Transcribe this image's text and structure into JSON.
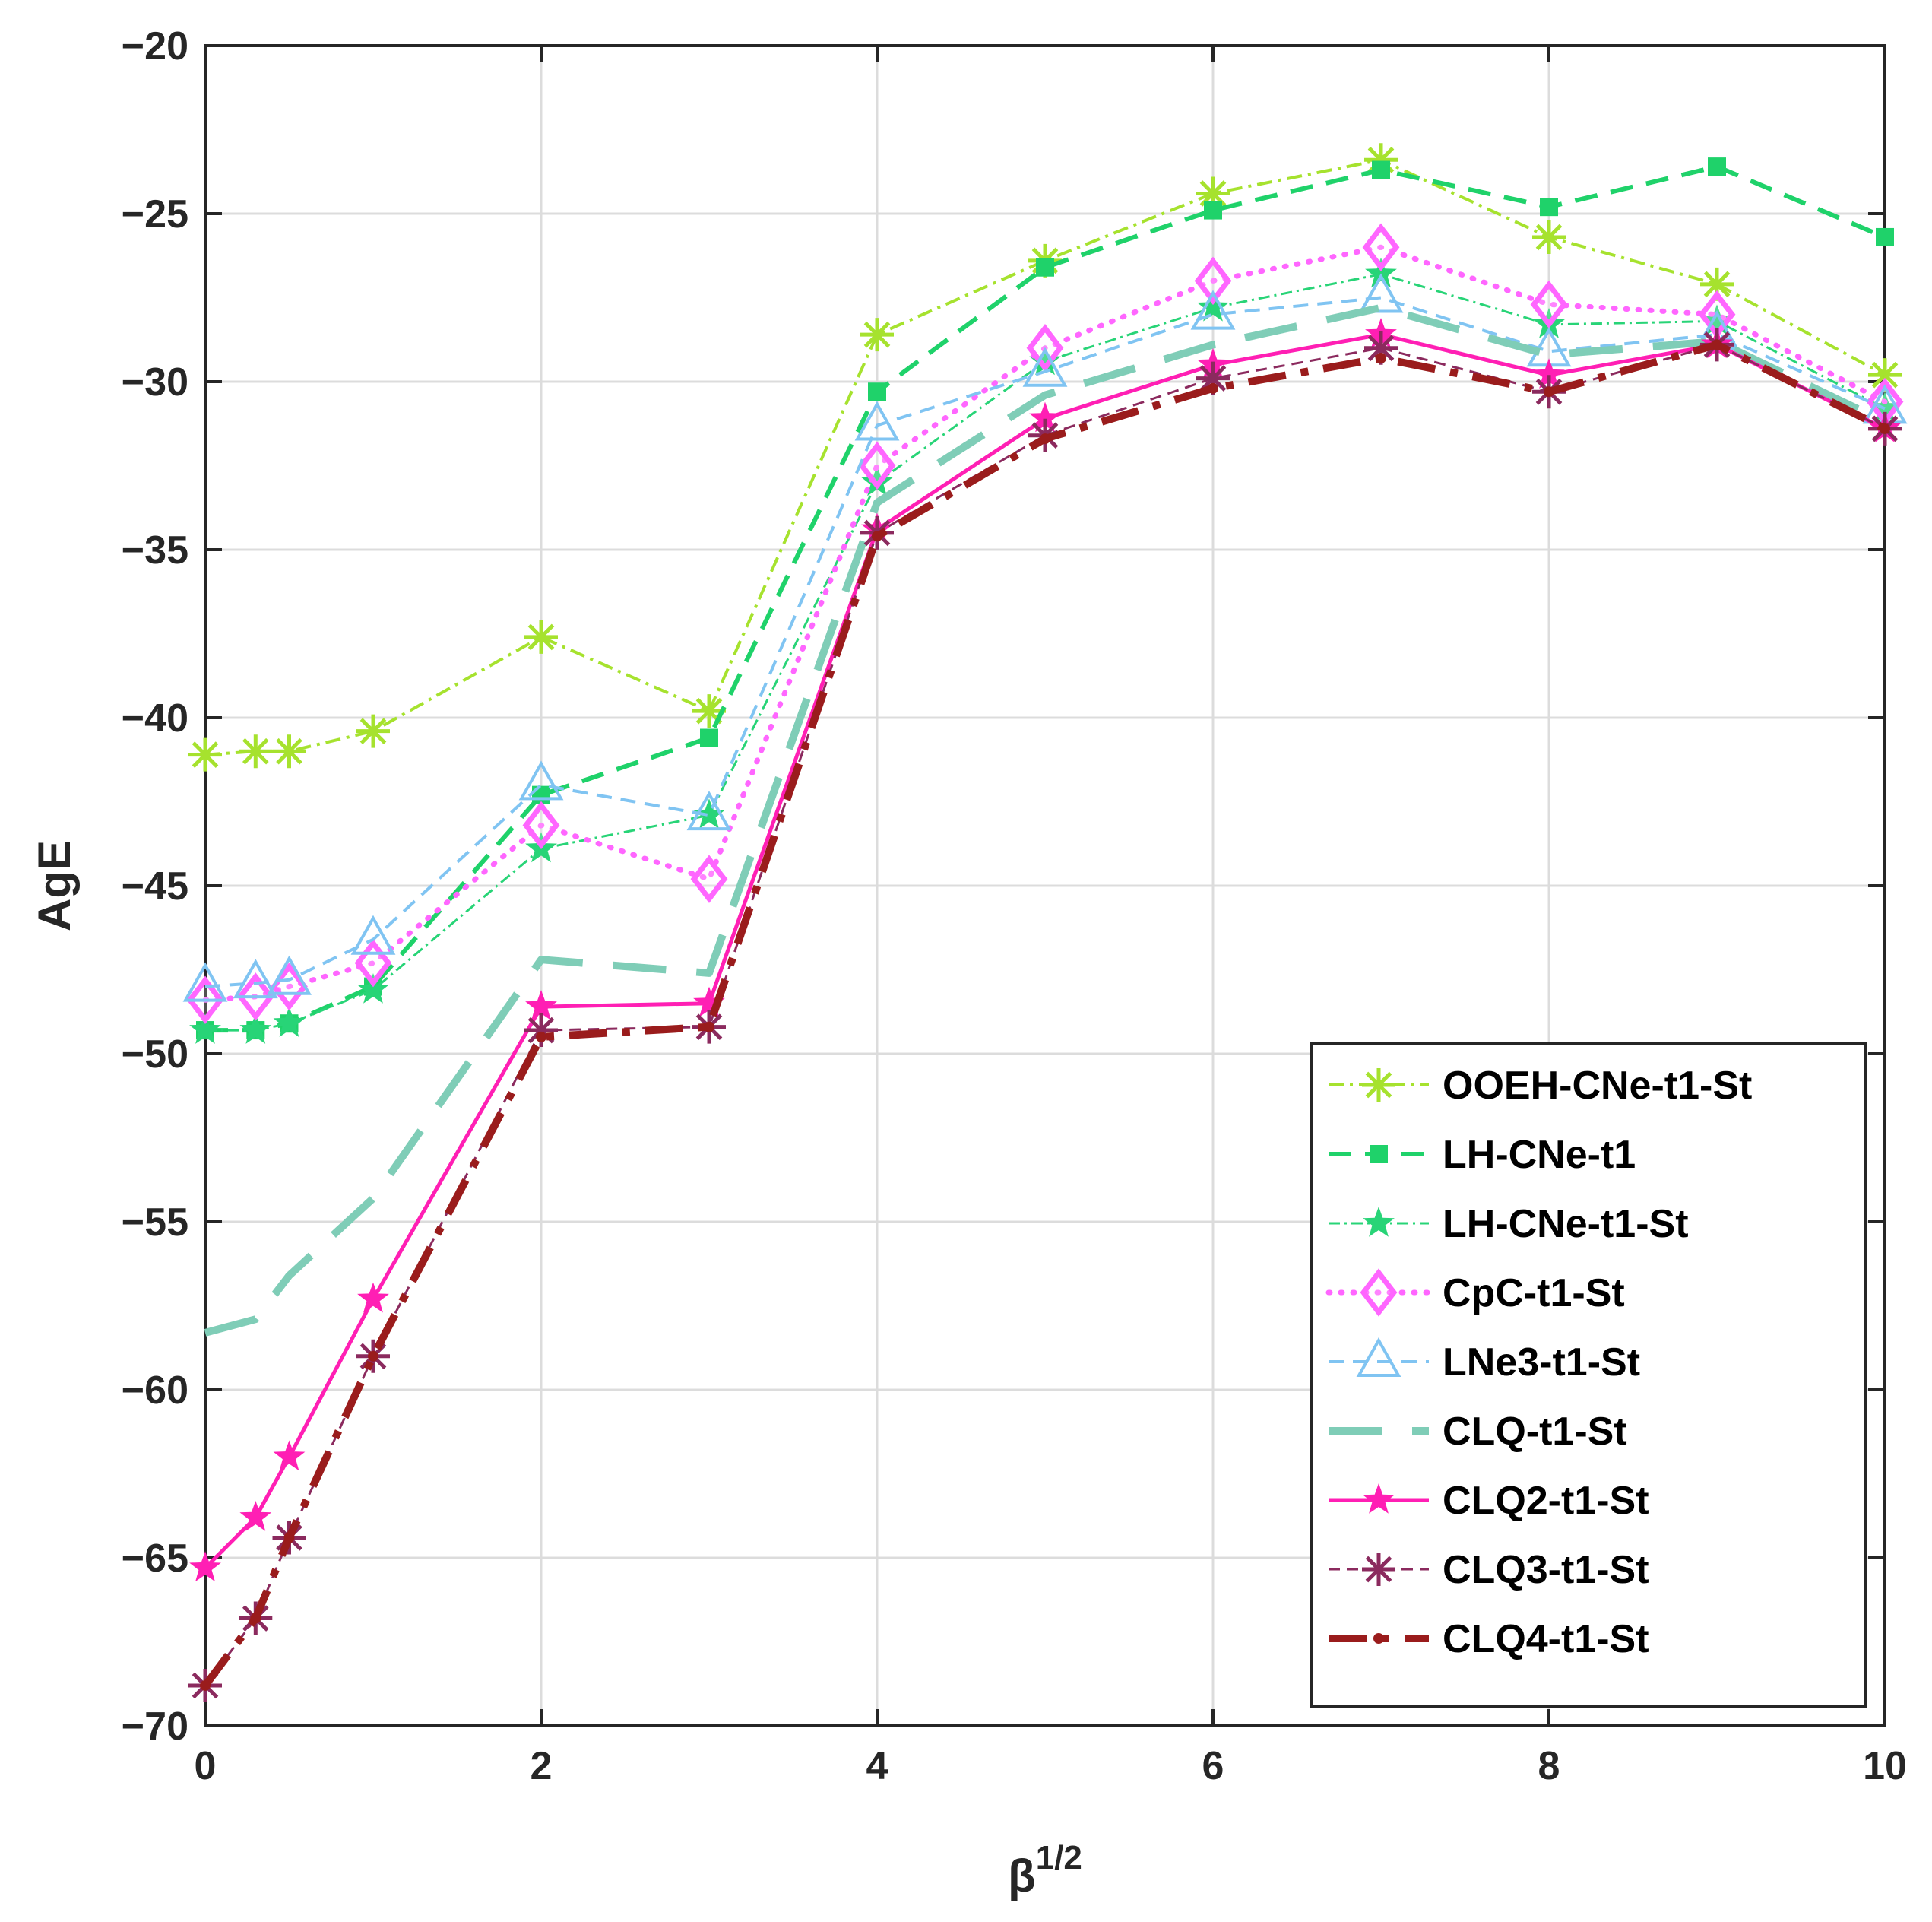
{
  "chart_data": {
    "type": "line",
    "xlabel": "β",
    "xlabel_superscript": "1/2",
    "ylabel": "AgE",
    "xlim": [
      0,
      10
    ],
    "ylim": [
      -70,
      -20
    ],
    "xticks": [
      0,
      2,
      4,
      6,
      8,
      10
    ],
    "yticks": [
      -70,
      -65,
      -60,
      -55,
      -50,
      -45,
      -40,
      -35,
      -30,
      -25,
      -20
    ],
    "xtick_labels": [
      "0",
      "2",
      "4",
      "6",
      "8",
      "10"
    ],
    "ytick_labels": [
      "−70",
      "−65",
      "−60",
      "−55",
      "−50",
      "−45",
      "−40",
      "−35",
      "−30",
      "−25",
      "−20"
    ],
    "grid": true,
    "legend_position": "bottom-right",
    "x": [
      0,
      0.3,
      0.5,
      1,
      2,
      3,
      4,
      5,
      6,
      7,
      8,
      9,
      10
    ],
    "series": [
      {
        "name": "OOEH-CNe-t1-St",
        "color": "#a6e22e",
        "dash": "dashdot",
        "marker": "asterisk",
        "width": 4,
        "values": [
          -41.1,
          -41.0,
          -41.0,
          -40.4,
          -37.6,
          -39.8,
          -28.6,
          -26.4,
          -24.4,
          -23.4,
          -25.7,
          -27.1,
          -29.8
        ]
      },
      {
        "name": "LH-CNe-t1",
        "color": "#1fd26a",
        "dash": "dashed",
        "marker": "square",
        "width": 6,
        "values": [
          -49.3,
          -49.3,
          -49.1,
          -48.0,
          -42.3,
          -40.6,
          -30.3,
          -26.6,
          -24.9,
          -23.7,
          -24.8,
          -23.6,
          -25.7
        ]
      },
      {
        "name": "LH-CNe-t1-St",
        "color": "#28d477",
        "dash": "dashdot",
        "marker": "star",
        "width": 3,
        "values": [
          -49.3,
          -49.3,
          -49.1,
          -48.1,
          -43.9,
          -42.9,
          -33.0,
          -29.4,
          -27.8,
          -26.8,
          -28.3,
          -28.2,
          -30.8
        ]
      },
      {
        "name": "CpC-t1-St",
        "color": "#ff66ff",
        "dash": "dotted",
        "marker": "diamond",
        "width": 7,
        "values": [
          -48.4,
          -48.3,
          -48.0,
          -47.3,
          -43.2,
          -44.8,
          -32.5,
          -29.0,
          -27.0,
          -26.0,
          -27.7,
          -28.0,
          -30.6
        ]
      },
      {
        "name": "LNe3-t1-St",
        "color": "#80c4f2",
        "dash": "dashed",
        "marker": "triangle",
        "width": 4,
        "values": [
          -48.0,
          -47.9,
          -47.8,
          -46.6,
          -42.0,
          -42.9,
          -31.3,
          -29.7,
          -28.0,
          -27.5,
          -29.1,
          -28.6,
          -30.8
        ]
      },
      {
        "name": "CLQ-t1-St",
        "color": "#7fcdb7",
        "dash": "longdash",
        "marker": "none",
        "width": 10,
        "values": [
          -58.3,
          -57.9,
          -56.6,
          -54.3,
          -47.2,
          -47.6,
          -33.6,
          -30.4,
          -28.9,
          -27.8,
          -29.2,
          -28.8,
          -31.2
        ]
      },
      {
        "name": "CLQ2-t1-St",
        "color": "#ff1fb4",
        "dash": "solid",
        "marker": "star",
        "width": 5,
        "values": [
          -65.3,
          -63.8,
          -62.0,
          -57.3,
          -48.6,
          -48.5,
          -34.4,
          -31.1,
          -29.5,
          -28.6,
          -29.8,
          -28.9,
          -31.4
        ]
      },
      {
        "name": "CLQ3-t1-St",
        "color": "#8b2a5e",
        "dash": "dashed",
        "marker": "asterisk",
        "width": 3,
        "values": [
          -68.8,
          -66.8,
          -64.4,
          -59.0,
          -49.3,
          -49.2,
          -34.5,
          -31.6,
          -29.9,
          -29.0,
          -30.3,
          -28.9,
          -31.4
        ]
      },
      {
        "name": "CLQ4-t1-St",
        "color": "#9a1c1c",
        "dash": "dashdot",
        "marker": "dot",
        "width": 10,
        "values": [
          -68.8,
          -66.8,
          -64.4,
          -59.0,
          -49.5,
          -49.2,
          -34.6,
          -31.7,
          -30.2,
          -29.3,
          -30.3,
          -28.9,
          -31.4
        ]
      }
    ]
  }
}
